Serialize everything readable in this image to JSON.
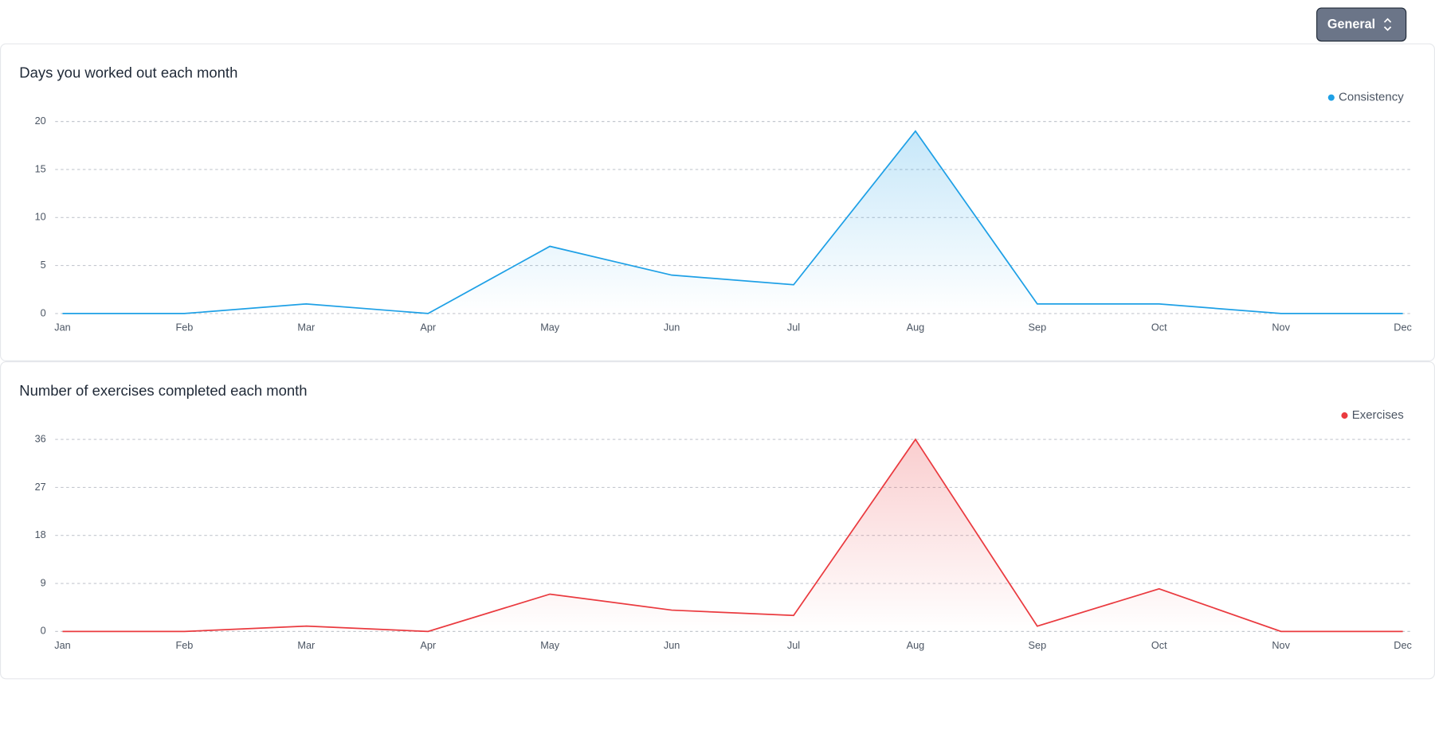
{
  "button": {
    "label": "General"
  },
  "chart_data": [
    {
      "type": "area",
      "title": "Days you worked out each month",
      "categories": [
        "Jan",
        "Feb",
        "Mar",
        "Apr",
        "May",
        "Jun",
        "Jul",
        "Aug",
        "Sep",
        "Oct",
        "Nov",
        "Dec"
      ],
      "series": [
        {
          "name": "Consistency",
          "color": "#1ea0e6",
          "values": [
            0,
            0,
            1,
            0,
            7,
            4,
            3,
            19,
            1,
            1,
            0,
            0
          ]
        }
      ],
      "ylim": [
        0,
        20
      ],
      "yticks": [
        0,
        5,
        10,
        15,
        20
      ],
      "grid": true,
      "legend": "top-right"
    },
    {
      "type": "area",
      "title": "Number of exercises completed each month",
      "categories": [
        "Jan",
        "Feb",
        "Mar",
        "Apr",
        "May",
        "Jun",
        "Jul",
        "Aug",
        "Sep",
        "Oct",
        "Nov",
        "Dec"
      ],
      "series": [
        {
          "name": "Exercises",
          "color": "#ea3a3f",
          "values": [
            0,
            0,
            1,
            0,
            7,
            4,
            3,
            36,
            1,
            8,
            0,
            0
          ]
        }
      ],
      "ylim": [
        0,
        36
      ],
      "yticks": [
        0,
        9,
        18,
        27,
        36
      ],
      "grid": true,
      "legend": "top-right"
    }
  ]
}
